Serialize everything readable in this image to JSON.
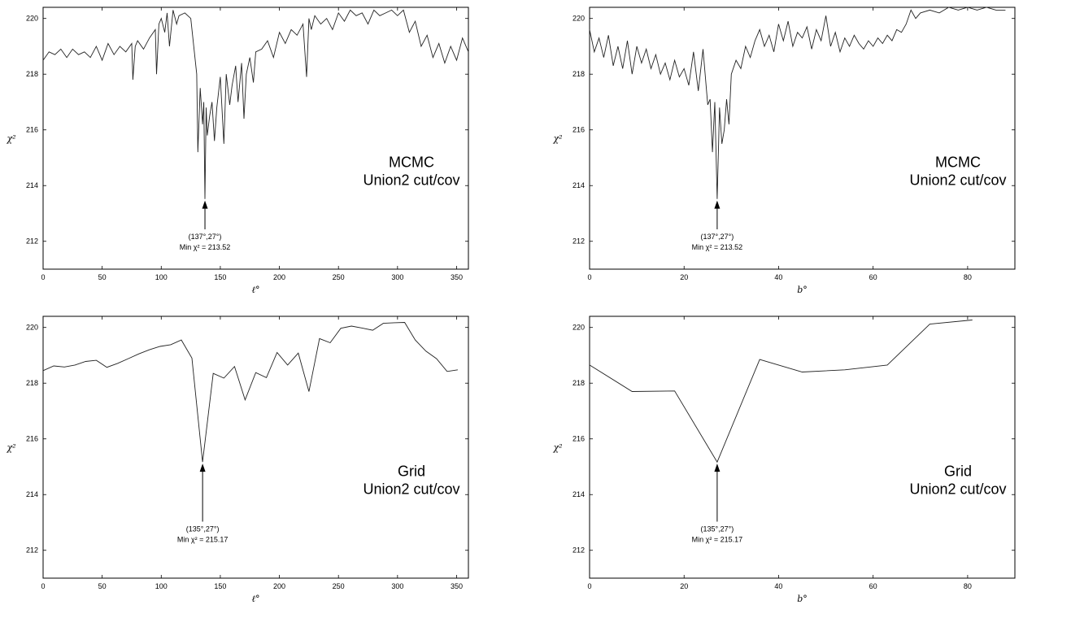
{
  "chart_data": [
    {
      "type": "line",
      "xlabel": "ℓ°",
      "ylabel": "χ²",
      "xlim": [
        0,
        360
      ],
      "ylim": [
        211,
        220.4
      ],
      "xticks": [
        "0",
        "50",
        "100",
        "150",
        "200",
        "250",
        "300",
        "350"
      ],
      "yticks": [
        "212",
        "214",
        "216",
        "218",
        "220"
      ],
      "label_lines": [
        "MCMC",
        "Union2 cut/cov"
      ],
      "annotation": {
        "coords": "(137°,27°)",
        "min_text": "Min χ² = 213.52",
        "x": 137,
        "y": 213.52,
        "text_y": 212.4
      },
      "series": [
        {
          "x": [
            0,
            5,
            10,
            15,
            20,
            25,
            30,
            35,
            40,
            45,
            50,
            55,
            60,
            65,
            70,
            75,
            76,
            78,
            80,
            85,
            90,
            95,
            96,
            98,
            100,
            103,
            105,
            107,
            110,
            113,
            115,
            120,
            125,
            130,
            131,
            133,
            135,
            136,
            137,
            138,
            139,
            141,
            143,
            145,
            147,
            150,
            153,
            155,
            158,
            160,
            163,
            165,
            168,
            170,
            172,
            175,
            178,
            180,
            185,
            190,
            195,
            200,
            205,
            210,
            215,
            220,
            223,
            225,
            227,
            230,
            235,
            240,
            245,
            250,
            255,
            260,
            265,
            270,
            275,
            280,
            285,
            290,
            295,
            300,
            305,
            310,
            315,
            320,
            325,
            330,
            335,
            340,
            345,
            350,
            355,
            360
          ],
          "y": [
            218.5,
            218.8,
            218.7,
            218.9,
            218.6,
            218.9,
            218.7,
            218.8,
            218.6,
            219.0,
            218.5,
            219.1,
            218.7,
            219.0,
            218.8,
            219.1,
            217.8,
            219.0,
            219.2,
            218.9,
            219.3,
            219.6,
            218.0,
            219.8,
            220.0,
            219.5,
            220.2,
            219.0,
            220.3,
            219.8,
            220.1,
            220.2,
            220.0,
            218.0,
            215.2,
            217.5,
            216.2,
            217.0,
            213.52,
            216.8,
            215.8,
            216.5,
            217.0,
            215.6,
            216.8,
            217.9,
            215.5,
            218.0,
            216.9,
            217.6,
            218.3,
            217.0,
            218.4,
            216.4,
            218.0,
            218.6,
            217.7,
            218.8,
            218.9,
            219.2,
            218.6,
            219.5,
            219.1,
            219.6,
            219.4,
            219.8,
            217.9,
            220.0,
            219.6,
            220.1,
            219.8,
            220.0,
            219.6,
            220.2,
            219.9,
            220.3,
            220.1,
            220.2,
            219.8,
            220.3,
            220.1,
            220.2,
            220.3,
            220.1,
            220.3,
            219.5,
            219.9,
            219.0,
            219.4,
            218.6,
            219.1,
            218.4,
            219.0,
            218.5,
            219.3,
            218.8
          ]
        }
      ]
    },
    {
      "type": "line",
      "xlabel": "b°",
      "ylabel": "χ²",
      "xlim": [
        0,
        90
      ],
      "ylim": [
        211,
        220.4
      ],
      "xticks": [
        "0",
        "20",
        "40",
        "60",
        "80"
      ],
      "yticks": [
        "212",
        "214",
        "216",
        "218",
        "220"
      ],
      "label_lines": [
        "MCMC",
        "Union2 cut/cov"
      ],
      "annotation": {
        "coords": "(137°,27°)",
        "min_text": "Min χ² = 213.52",
        "x": 27,
        "y": 213.52,
        "text_y": 212.4
      },
      "series": [
        {
          "x": [
            0,
            1,
            2,
            3,
            4,
            5,
            6,
            7,
            8,
            9,
            10,
            11,
            12,
            13,
            14,
            15,
            16,
            17,
            18,
            19,
            20,
            21,
            22,
            23,
            24,
            25,
            25.5,
            26,
            26.5,
            27,
            27.5,
            28,
            28.5,
            29,
            29.5,
            30,
            31,
            32,
            33,
            34,
            35,
            36,
            37,
            38,
            39,
            40,
            41,
            42,
            43,
            44,
            45,
            46,
            47,
            48,
            49,
            50,
            51,
            52,
            53,
            54,
            55,
            56,
            57,
            58,
            59,
            60,
            61,
            62,
            63,
            64,
            65,
            66,
            67,
            68,
            69,
            70,
            72,
            74,
            76,
            78,
            80,
            82,
            84,
            86,
            88
          ],
          "y": [
            219.6,
            218.8,
            219.3,
            218.6,
            219.4,
            218.3,
            219.0,
            218.2,
            219.2,
            218.0,
            219.0,
            218.4,
            218.9,
            218.2,
            218.7,
            218.0,
            218.4,
            217.8,
            218.5,
            217.9,
            218.2,
            217.6,
            218.8,
            217.4,
            218.9,
            216.9,
            217.1,
            215.2,
            217.0,
            213.52,
            216.8,
            215.5,
            216.0,
            217.1,
            216.2,
            218.0,
            218.5,
            218.2,
            219.0,
            218.6,
            219.2,
            219.6,
            219.0,
            219.4,
            218.8,
            219.8,
            219.2,
            219.9,
            219.0,
            219.5,
            219.3,
            219.7,
            218.9,
            219.6,
            219.2,
            220.1,
            219.0,
            219.5,
            218.8,
            219.3,
            219.0,
            219.4,
            219.1,
            218.9,
            219.2,
            219.0,
            219.3,
            219.1,
            219.4,
            219.2,
            219.6,
            219.5,
            219.8,
            220.3,
            220.0,
            220.2,
            220.3,
            220.2,
            220.4,
            220.3,
            220.4,
            220.3,
            220.4,
            220.3,
            220.3
          ]
        }
      ]
    },
    {
      "type": "line",
      "xlabel": "ℓ°",
      "ylabel": "χ²",
      "xlim": [
        0,
        360
      ],
      "ylim": [
        211,
        220.4
      ],
      "xticks": [
        "0",
        "50",
        "100",
        "150",
        "200",
        "250",
        "300",
        "350"
      ],
      "yticks": [
        "212",
        "214",
        "216",
        "218",
        "220"
      ],
      "label_lines": [
        "Grid",
        "Union2 cut/cov"
      ],
      "annotation": {
        "coords": "(135°,27°)",
        "min_text": "Min χ² = 215.17",
        "x": 135,
        "y": 215.17,
        "text_y": 213.0
      },
      "series": [
        {
          "x": [
            0,
            9,
            18,
            27,
            36,
            45,
            54,
            63,
            72,
            81,
            90,
            99,
            108,
            117,
            126,
            135,
            144,
            153,
            162,
            171,
            180,
            189,
            198,
            207,
            216,
            225,
            234,
            243,
            252,
            261,
            270,
            279,
            288,
            297,
            306,
            315,
            324,
            333,
            342,
            351
          ],
          "y": [
            218.45,
            218.62,
            218.58,
            218.65,
            218.78,
            218.82,
            218.57,
            218.71,
            218.88,
            219.05,
            219.2,
            219.32,
            219.38,
            219.55,
            218.9,
            215.17,
            218.35,
            218.18,
            218.6,
            217.4,
            218.38,
            218.2,
            219.1,
            218.65,
            219.08,
            217.7,
            219.6,
            219.45,
            219.97,
            220.05,
            219.98,
            219.9,
            220.15,
            220.17,
            220.18,
            219.55,
            219.15,
            218.88,
            218.42,
            218.48
          ]
        }
      ]
    },
    {
      "type": "line",
      "xlabel": "b°",
      "ylabel": "χ²",
      "xlim": [
        0,
        90
      ],
      "ylim": [
        211,
        220.4
      ],
      "xticks": [
        "0",
        "20",
        "40",
        "60",
        "80"
      ],
      "yticks": [
        "212",
        "214",
        "216",
        "218",
        "220"
      ],
      "label_lines": [
        "Grid",
        "Union2 cut/cov"
      ],
      "annotation": {
        "coords": "(135°,27°)",
        "min_text": "Min χ² = 215.17",
        "x": 27,
        "y": 215.17,
        "text_y": 213.0
      },
      "series": [
        {
          "x": [
            0,
            9,
            18,
            27,
            36,
            45,
            54,
            63,
            72,
            81
          ],
          "y": [
            218.65,
            217.7,
            217.72,
            215.17,
            218.85,
            218.4,
            218.48,
            218.65,
            220.12,
            220.27
          ]
        }
      ]
    }
  ]
}
